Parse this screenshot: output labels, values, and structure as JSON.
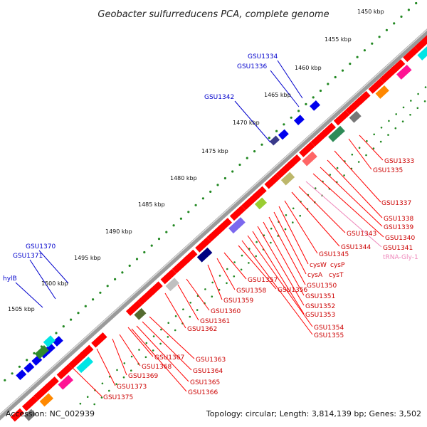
{
  "title": "Geobacter sulfurreducens PCA, complete genome",
  "ticks": [
    "1450 kbp",
    "1455 kbp",
    "1460 kbp",
    "1465 kbp",
    "1470 kbp",
    "1475 kbp",
    "1480 kbp",
    "1485 kbp",
    "1490 kbp",
    "1495 kbp",
    "1500 kbp",
    "1505 kbp"
  ],
  "blue_labels": [
    "GSU1334",
    "GSU1336",
    "GSU1342",
    "GSU1370",
    "GSU1371",
    "hylB"
  ],
  "red_labels": [
    "GSU1333",
    "GSU1335",
    "GSU1337",
    "GSU1338",
    "GSU1339",
    "GSU1340",
    "GSU1341",
    "GSU1343",
    "GSU1344",
    "GSU1345",
    "cysW",
    "cysP",
    "cysA",
    "cysT",
    "GSU1350",
    "GSU1351",
    "GSU1352",
    "GSU1353",
    "GSU1354",
    "GSU1355",
    "GSU1356",
    "GSU1357",
    "GSU1358",
    "GSU1359",
    "GSU1360",
    "GSU1361",
    "GSU1362",
    "GSU1363",
    "GSU1364",
    "GSU1365",
    "GSU1366",
    "GSU1367",
    "GSU1368",
    "GSU1369",
    "GSU1373",
    "GSU1375"
  ],
  "pink_labels": [
    "tRNA-Gly-1"
  ],
  "footer": {
    "accession": "Accession: NC_002939",
    "stats": "Topology: circular; Length: 3,814,139 bp; Genes: 3,502"
  },
  "colors": {
    "forward_gene": "#ff0000",
    "reverse_gene": "#0000ee",
    "label_line_blue": "#0000cc",
    "label_line_red": "#ff0000",
    "dots_green": "#228822",
    "backbone": "#888888"
  }
}
